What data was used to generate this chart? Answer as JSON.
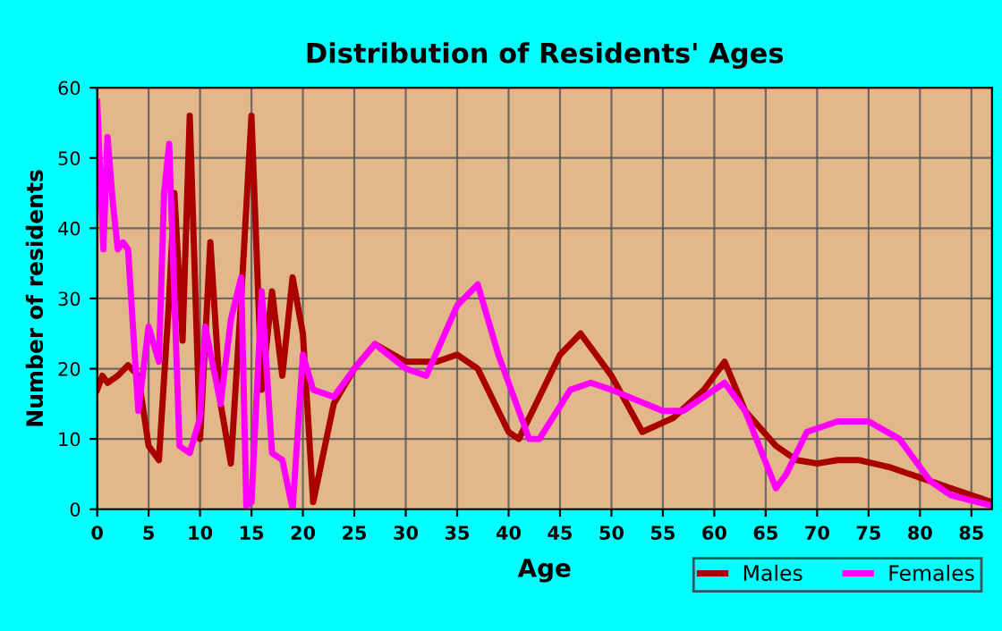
{
  "chart_data": {
    "type": "line",
    "title": "Distribution of Residents' Ages",
    "xlabel": "Age",
    "ylabel": "Number of residents",
    "xlim": [
      0,
      87
    ],
    "xticks": [
      0,
      5,
      10,
      15,
      20,
      25,
      30,
      35,
      40,
      45,
      50,
      55,
      60,
      65,
      70,
      75,
      80,
      85
    ],
    "ylim": [
      0,
      60
    ],
    "yticks": [
      0,
      10,
      20,
      30,
      40,
      50,
      60
    ],
    "grid": true,
    "legend": "bottom right",
    "line_style": "solid",
    "marker": "none",
    "series": [
      {
        "name": "Males",
        "color": "#aa0000",
        "x": [
          0,
          0.5,
          1,
          2,
          3,
          4,
          5,
          6,
          7,
          7.5,
          8.3,
          9,
          10,
          11,
          12,
          13,
          14,
          15,
          16,
          17,
          18,
          19,
          20,
          21,
          22,
          23,
          25,
          27,
          30,
          33,
          35,
          37,
          40,
          41,
          43,
          45,
          47,
          50,
          53,
          56,
          59,
          61,
          63,
          66,
          68,
          70,
          72,
          74,
          77,
          80,
          83,
          87
        ],
        "values": [
          17,
          19,
          18,
          19,
          20.5,
          19,
          9,
          7,
          30,
          45,
          24,
          56,
          10,
          38,
          15,
          6.5,
          30,
          56,
          17,
          31,
          19,
          33,
          25,
          1,
          8,
          15,
          20,
          23.5,
          21,
          21,
          22,
          20,
          11,
          10,
          16,
          22,
          25,
          19,
          11,
          13,
          17,
          21,
          14,
          9,
          7,
          6.5,
          7,
          7,
          6,
          4.5,
          3,
          1
        ]
      },
      {
        "name": "Females",
        "color": "#ff00ff",
        "x": [
          0,
          0.6,
          1,
          1.5,
          2,
          2.5,
          3,
          4,
          5,
          6,
          6.5,
          7,
          8,
          9,
          10,
          10.5,
          12,
          13,
          14,
          14.5,
          15,
          16,
          17,
          18,
          19,
          20,
          21,
          23,
          25,
          27,
          30,
          32,
          35,
          37,
          39,
          42,
          43,
          46,
          48,
          50,
          55,
          57,
          61,
          63,
          66,
          67,
          69,
          72,
          75,
          78,
          81,
          83,
          87
        ],
        "values": [
          58,
          37,
          53,
          44,
          37,
          38,
          37,
          14,
          26,
          21,
          45,
          52,
          9,
          8,
          13,
          26,
          15,
          27,
          33,
          0.5,
          1,
          31,
          8,
          7,
          0,
          22,
          17,
          16,
          20,
          23.5,
          20,
          19,
          29,
          32,
          22,
          10,
          10,
          17,
          18,
          17,
          14,
          14,
          18,
          14,
          3,
          5,
          11,
          12.5,
          12.5,
          10,
          4,
          2,
          0.5
        ]
      }
    ]
  }
}
